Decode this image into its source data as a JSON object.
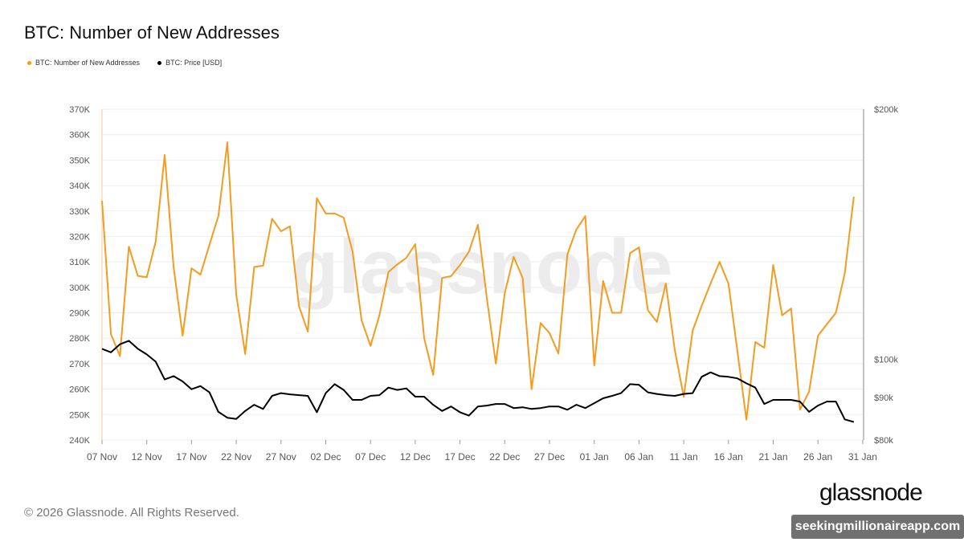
{
  "header": {
    "title": "BTC: Number of New Addresses"
  },
  "legend": [
    {
      "label": "BTC: Number of New Addresses",
      "color": "#f39c21"
    },
    {
      "label": "BTC: Price [USD]",
      "color": "#000000"
    }
  ],
  "footer": {
    "copyright": "© 2026 Glassnode. All Rights Reserved.",
    "watermark": "glassnode",
    "logo": "glassnode",
    "overlay": "seekingmillionaireapp.com"
  },
  "chart_data": {
    "type": "line",
    "title": "BTC: Number of New Addresses",
    "x_start": "2025-11-07",
    "x_interval": "1 day",
    "x_ticks": [
      "07 Nov",
      "12 Nov",
      "17 Nov",
      "22 Nov",
      "27 Nov",
      "02 Dec",
      "07 Dec",
      "12 Dec",
      "17 Dec",
      "22 Dec",
      "27 Dec",
      "01 Jan",
      "06 Jan",
      "11 Jan",
      "16 Jan",
      "21 Jan",
      "26 Jan",
      "31 Jan"
    ],
    "y_left": {
      "ticks": [
        "240K",
        "250K",
        "260K",
        "270K",
        "280K",
        "290K",
        "300K",
        "310K",
        "320K",
        "330K",
        "340K",
        "350K",
        "360K",
        "370K"
      ],
      "range": [
        240000,
        370000
      ]
    },
    "y_right": {
      "ticks": [
        {
          "label": "$80k",
          "value": 80000
        },
        {
          "label": "$90k",
          "value": 90000
        },
        {
          "label": "$100k",
          "value": 100000
        },
        {
          "label": "$200k",
          "value": 200000
        }
      ],
      "range": [
        80000,
        200000
      ],
      "scale": "log"
    },
    "grid": true,
    "legend_position": "top-left",
    "series": [
      {
        "name": "BTC: Number of New Addresses",
        "axis": "left",
        "color": "#f39c21",
        "values": [
          334000,
          281600,
          273000,
          316000,
          304500,
          304000,
          318000,
          352000,
          308000,
          281000,
          307500,
          305000,
          316700,
          328000,
          357000,
          297000,
          273800,
          308000,
          308500,
          327000,
          322000,
          324000,
          292700,
          282600,
          335000,
          329000,
          329000,
          327400,
          314000,
          287000,
          277000,
          289000,
          306000,
          309000,
          311600,
          317000,
          280000,
          265600,
          303700,
          304400,
          308800,
          314000,
          324600,
          295800,
          270000,
          297700,
          312000,
          303700,
          260000,
          286000,
          282000,
          274000,
          313000,
          322700,
          328000,
          269300,
          302500,
          290000,
          290000,
          313500,
          315700,
          291000,
          286400,
          301500,
          275300,
          257000,
          283000,
          292700,
          301500,
          310000,
          301500,
          275000,
          248000,
          278500,
          276300,
          308800,
          289000,
          291700,
          252000,
          259000,
          281000,
          285500,
          290000,
          305600,
          335600
        ]
      },
      {
        "name": "BTC: Price [USD]",
        "axis": "right",
        "color": "#000000",
        "values": [
          103000,
          102000,
          104300,
          105300,
          103000,
          101400,
          99400,
          94600,
          95500,
          94100,
          92100,
          92900,
          91300,
          86500,
          85100,
          84800,
          86700,
          88200,
          87200,
          90400,
          91100,
          90800,
          90600,
          90400,
          86400,
          91100,
          93400,
          91900,
          89400,
          89400,
          90400,
          90600,
          92500,
          91900,
          92300,
          90200,
          90200,
          88200,
          86700,
          87800,
          86400,
          85600,
          87800,
          88000,
          88400,
          88400,
          87400,
          87600,
          87200,
          87400,
          87800,
          87800,
          87000,
          88200,
          87400,
          88600,
          89800,
          90400,
          91100,
          93400,
          93200,
          91300,
          90900,
          90600,
          90400,
          90900,
          91100,
          95300,
          96500,
          95500,
          95300,
          94900,
          93600,
          92500,
          88400,
          89400,
          89400,
          89400,
          89000,
          86500,
          88000,
          89000,
          89000,
          84700,
          84100
        ]
      }
    ]
  }
}
